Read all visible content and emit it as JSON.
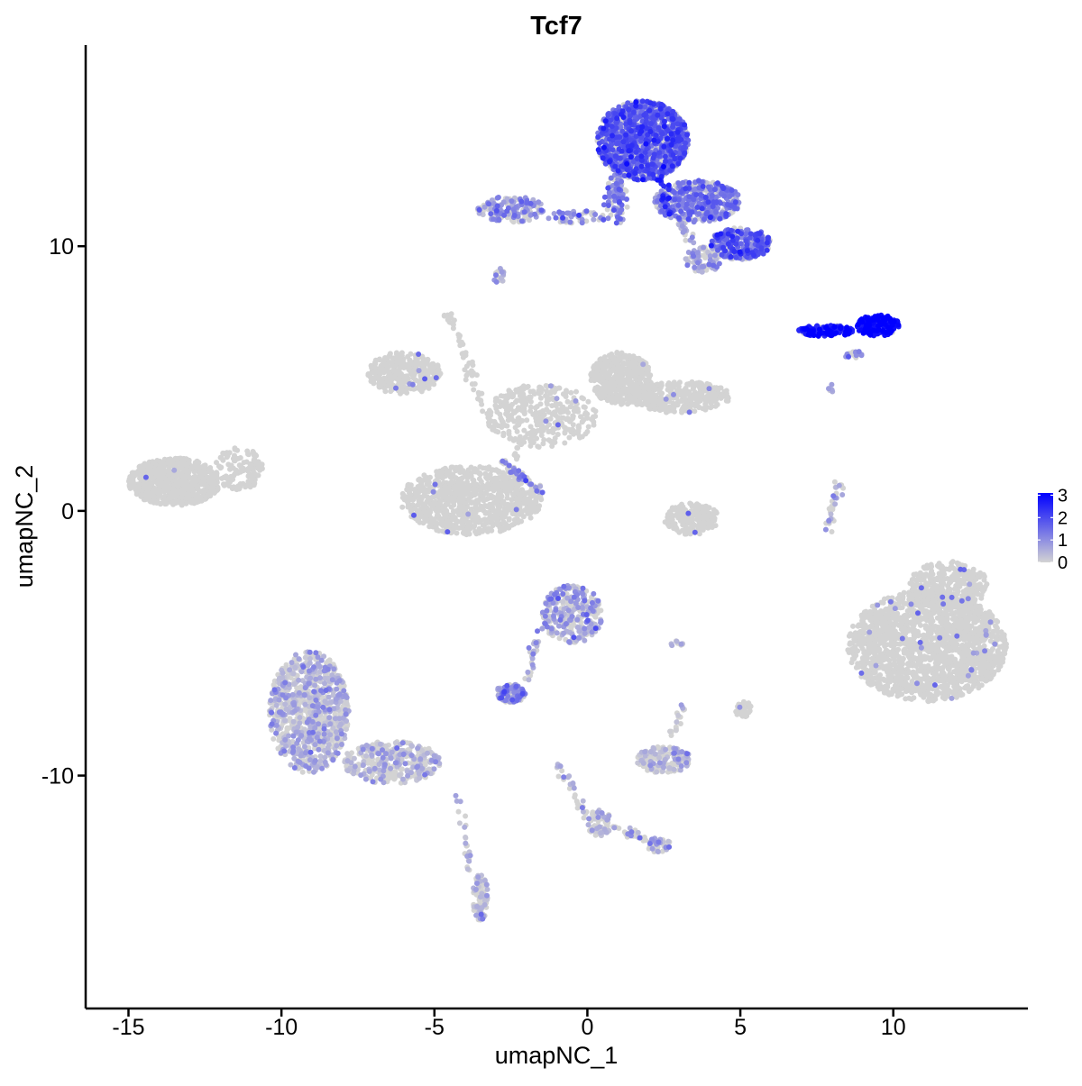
{
  "chart_data": {
    "type": "scatter",
    "title": "Tcf7",
    "xlabel": "umapNC_1",
    "ylabel": "umapNC_2",
    "xlim": [
      -16.4,
      14.4
    ],
    "ylim": [
      -18.8,
      17.6
    ],
    "xticks": [
      -15,
      -10,
      -5,
      0,
      5,
      10
    ],
    "xtick_labels": [
      "-15",
      "-10",
      "-5",
      "0",
      "5",
      "10"
    ],
    "yticks": [
      -10,
      0,
      10
    ],
    "ytick_labels": [
      "-10",
      "0",
      "10"
    ],
    "grid": false,
    "point_color_low": "#d3d3d3",
    "point_color_high": "#0000ff",
    "colorbar": {
      "min": 0,
      "max": 3.1,
      "ticks": [
        0,
        1,
        2,
        3
      ],
      "tick_labels": [
        "0",
        "1",
        "2",
        "3"
      ],
      "placement": "right"
    },
    "clusters": [
      {
        "cx": 1.8,
        "cy": 14.0,
        "rx": 1.5,
        "ry": 1.5,
        "n": 1300,
        "expr": 1.7
      },
      {
        "cx": 3.6,
        "cy": 11.7,
        "rx": 1.4,
        "ry": 0.8,
        "n": 450,
        "expr": 1.25
      },
      {
        "cx": 5.0,
        "cy": 10.1,
        "rx": 1.0,
        "ry": 0.6,
        "n": 300,
        "expr": 1.6
      },
      {
        "cx": 3.8,
        "cy": 9.5,
        "rx": 0.6,
        "ry": 0.5,
        "n": 70,
        "expr": 0.5
      },
      {
        "cx": -2.5,
        "cy": 11.4,
        "rx": 1.1,
        "ry": 0.5,
        "n": 160,
        "expr": 0.9
      },
      {
        "cx": -0.3,
        "cy": 11.1,
        "rx": 1.0,
        "ry": 0.25,
        "n": 50,
        "expr": 1.0
      },
      {
        "cx": 0.9,
        "cy": 11.8,
        "rx": 0.4,
        "ry": 0.9,
        "n": 60,
        "expr": 1.2
      },
      {
        "cx": 7.8,
        "cy": 6.8,
        "rx": 0.9,
        "ry": 0.22,
        "n": 140,
        "expr": 2.7
      },
      {
        "cx": 9.5,
        "cy": 7.0,
        "rx": 0.7,
        "ry": 0.4,
        "n": 160,
        "expr": 3.0
      },
      {
        "cx": 8.7,
        "cy": 5.9,
        "rx": 0.3,
        "ry": 0.15,
        "n": 20,
        "expr": 1.0
      },
      {
        "cx": -6.0,
        "cy": 5.2,
        "rx": 1.2,
        "ry": 0.8,
        "n": 350,
        "expr": 0.02
      },
      {
        "cx": 1.1,
        "cy": 5.0,
        "rx": 1.0,
        "ry": 1.0,
        "n": 450,
        "expr": 0.02
      },
      {
        "cx": 3.0,
        "cy": 4.3,
        "rx": 1.7,
        "ry": 0.6,
        "n": 350,
        "expr": 0.02
      },
      {
        "cx": -1.5,
        "cy": 3.6,
        "rx": 1.8,
        "ry": 1.2,
        "n": 350,
        "expr": 0.03
      },
      {
        "cx": -3.8,
        "cy": 0.4,
        "rx": 2.3,
        "ry": 1.3,
        "n": 900,
        "expr": 0.02
      },
      {
        "cx": -13.5,
        "cy": 1.1,
        "rx": 1.5,
        "ry": 0.9,
        "n": 700,
        "expr": 0.03
      },
      {
        "cx": -11.4,
        "cy": 1.6,
        "rx": 0.8,
        "ry": 0.8,
        "n": 120,
        "expr": 0.05
      },
      {
        "cx": 3.4,
        "cy": -0.3,
        "rx": 0.9,
        "ry": 0.6,
        "n": 200,
        "expr": 0.05
      },
      {
        "cx": 11.1,
        "cy": -5.1,
        "rx": 2.6,
        "ry": 2.1,
        "n": 1800,
        "expr": 0.03
      },
      {
        "cx": 11.8,
        "cy": -2.8,
        "rx": 1.3,
        "ry": 0.9,
        "n": 300,
        "expr": 0.05
      },
      {
        "cx": -9.1,
        "cy": -7.6,
        "rx": 1.3,
        "ry": 2.3,
        "n": 900,
        "expr": 0.35
      },
      {
        "cx": -6.4,
        "cy": -9.5,
        "rx": 1.6,
        "ry": 0.8,
        "n": 350,
        "expr": 0.25
      },
      {
        "cx": -0.5,
        "cy": -3.9,
        "rx": 1.0,
        "ry": 1.1,
        "n": 300,
        "expr": 0.6
      },
      {
        "cx": -2.5,
        "cy": -6.9,
        "rx": 0.5,
        "ry": 0.35,
        "n": 120,
        "expr": 1.0
      },
      {
        "cx": 2.5,
        "cy": -9.4,
        "rx": 0.9,
        "ry": 0.5,
        "n": 160,
        "expr": 0.2
      },
      {
        "cx": -3.5,
        "cy": -14.6,
        "rx": 0.25,
        "ry": 0.9,
        "n": 90,
        "expr": 0.35
      },
      {
        "cx": 0.4,
        "cy": -11.8,
        "rx": 0.4,
        "ry": 0.5,
        "n": 60,
        "expr": 0.2
      },
      {
        "cx": 2.3,
        "cy": -12.6,
        "rx": 0.4,
        "ry": 0.3,
        "n": 40,
        "expr": 0.4
      },
      {
        "cx": 5.1,
        "cy": -7.5,
        "rx": 0.3,
        "ry": 0.3,
        "n": 30,
        "expr": 0.0
      },
      {
        "cx": 2.9,
        "cy": -5.0,
        "rx": 0.3,
        "ry": 0.1,
        "n": 10,
        "expr": 0.3
      },
      {
        "cx": -4.5,
        "cy": 7.3,
        "rx": 0.2,
        "ry": 0.2,
        "n": 8,
        "expr": 0.1
      },
      {
        "cx": -2.9,
        "cy": 8.9,
        "rx": 0.2,
        "ry": 0.3,
        "n": 20,
        "expr": 0.2
      }
    ],
    "trails": [
      {
        "x": [
          1.0,
          1.1
        ],
        "y": [
          12.8,
          10.8
        ],
        "n": 40,
        "expr": 1.3
      },
      {
        "x": [
          2.3,
          2.7
        ],
        "y": [
          12.9,
          11.2
        ],
        "n": 30,
        "expr": 2.3
      },
      {
        "x": [
          3.0,
          3.8
        ],
        "y": [
          11.0,
          9.2
        ],
        "n": 30,
        "expr": 0.8
      },
      {
        "x": [
          -4.4,
          -3.5
        ],
        "y": [
          7.5,
          3.8
        ],
        "n": 40,
        "expr": 0.05
      },
      {
        "x": [
          -2.8,
          -1.4
        ],
        "y": [
          1.9,
          0.6
        ],
        "n": 45,
        "expr": 1.1
      },
      {
        "x": [
          -2.2,
          -3.2
        ],
        "y": [
          2.6,
          -0.8
        ],
        "n": 30,
        "expr": 0.05
      },
      {
        "x": [
          8.3,
          7.8
        ],
        "y": [
          1.2,
          -0.7
        ],
        "n": 30,
        "expr": 0.5
      },
      {
        "x": [
          -1.6,
          -2.0
        ],
        "y": [
          -4.5,
          -6.5
        ],
        "n": 30,
        "expr": 0.6
      },
      {
        "x": [
          -0.9,
          0.0
        ],
        "y": [
          -9.5,
          -11.6
        ],
        "n": 30,
        "expr": 0.6
      },
      {
        "x": [
          0.6,
          2.2
        ],
        "y": [
          -11.9,
          -12.5
        ],
        "n": 30,
        "expr": 0.5
      },
      {
        "x": [
          -4.3,
          -3.8
        ],
        "y": [
          -10.7,
          -13.5
        ],
        "n": 25,
        "expr": 0.3
      },
      {
        "x": [
          2.8,
          3.2
        ],
        "y": [
          -8.4,
          -7.1
        ],
        "n": 18,
        "expr": 0.2
      },
      {
        "x": [
          7.7,
          8.0
        ],
        "y": [
          4.9,
          4.5
        ],
        "n": 6,
        "expr": 0.5
      }
    ]
  }
}
